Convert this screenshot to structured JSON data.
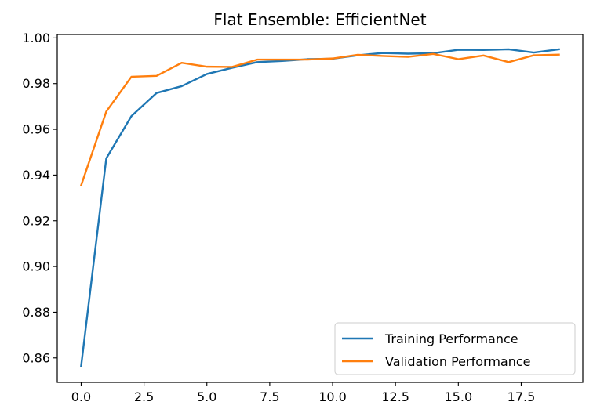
{
  "chart_data": {
    "type": "line",
    "title": "Flat Ensemble: EfficientNet",
    "xlabel": "",
    "ylabel": "",
    "xlim": [
      -0.95,
      19.95
    ],
    "ylim": [
      0.8493,
      1.0015
    ],
    "x_ticks": [
      0.0,
      2.5,
      5.0,
      7.5,
      10.0,
      12.5,
      15.0,
      17.5
    ],
    "x_tick_labels": [
      "0.0",
      "2.5",
      "5.0",
      "7.5",
      "10.0",
      "12.5",
      "15.0",
      "17.5"
    ],
    "y_ticks": [
      0.86,
      0.88,
      0.9,
      0.92,
      0.94,
      0.96,
      0.98,
      1.0
    ],
    "y_tick_labels": [
      "0.86",
      "0.88",
      "0.90",
      "0.92",
      "0.94",
      "0.96",
      "0.98",
      "1.00"
    ],
    "grid": false,
    "legend_position": "lower-right",
    "x": [
      0,
      1,
      2,
      3,
      4,
      5,
      6,
      7,
      8,
      9,
      10,
      11,
      12,
      13,
      14,
      15,
      16,
      17,
      18,
      19
    ],
    "series": [
      {
        "name": "Training Performance",
        "color": "#1f77b4",
        "values": [
          0.8565,
          0.9473,
          0.9658,
          0.9759,
          0.9789,
          0.9842,
          0.9869,
          0.9894,
          0.9899,
          0.9907,
          0.9909,
          0.9924,
          0.9934,
          0.9931,
          0.9933,
          0.9948,
          0.9947,
          0.995,
          0.9936,
          0.995
        ]
      },
      {
        "name": "Validation Performance",
        "color": "#ff7f0e",
        "values": [
          0.9355,
          0.9678,
          0.983,
          0.9834,
          0.9891,
          0.9874,
          0.9873,
          0.9905,
          0.9905,
          0.9905,
          0.991,
          0.9926,
          0.9921,
          0.9917,
          0.993,
          0.9907,
          0.9923,
          0.9894,
          0.9924,
          0.9927
        ]
      }
    ]
  }
}
